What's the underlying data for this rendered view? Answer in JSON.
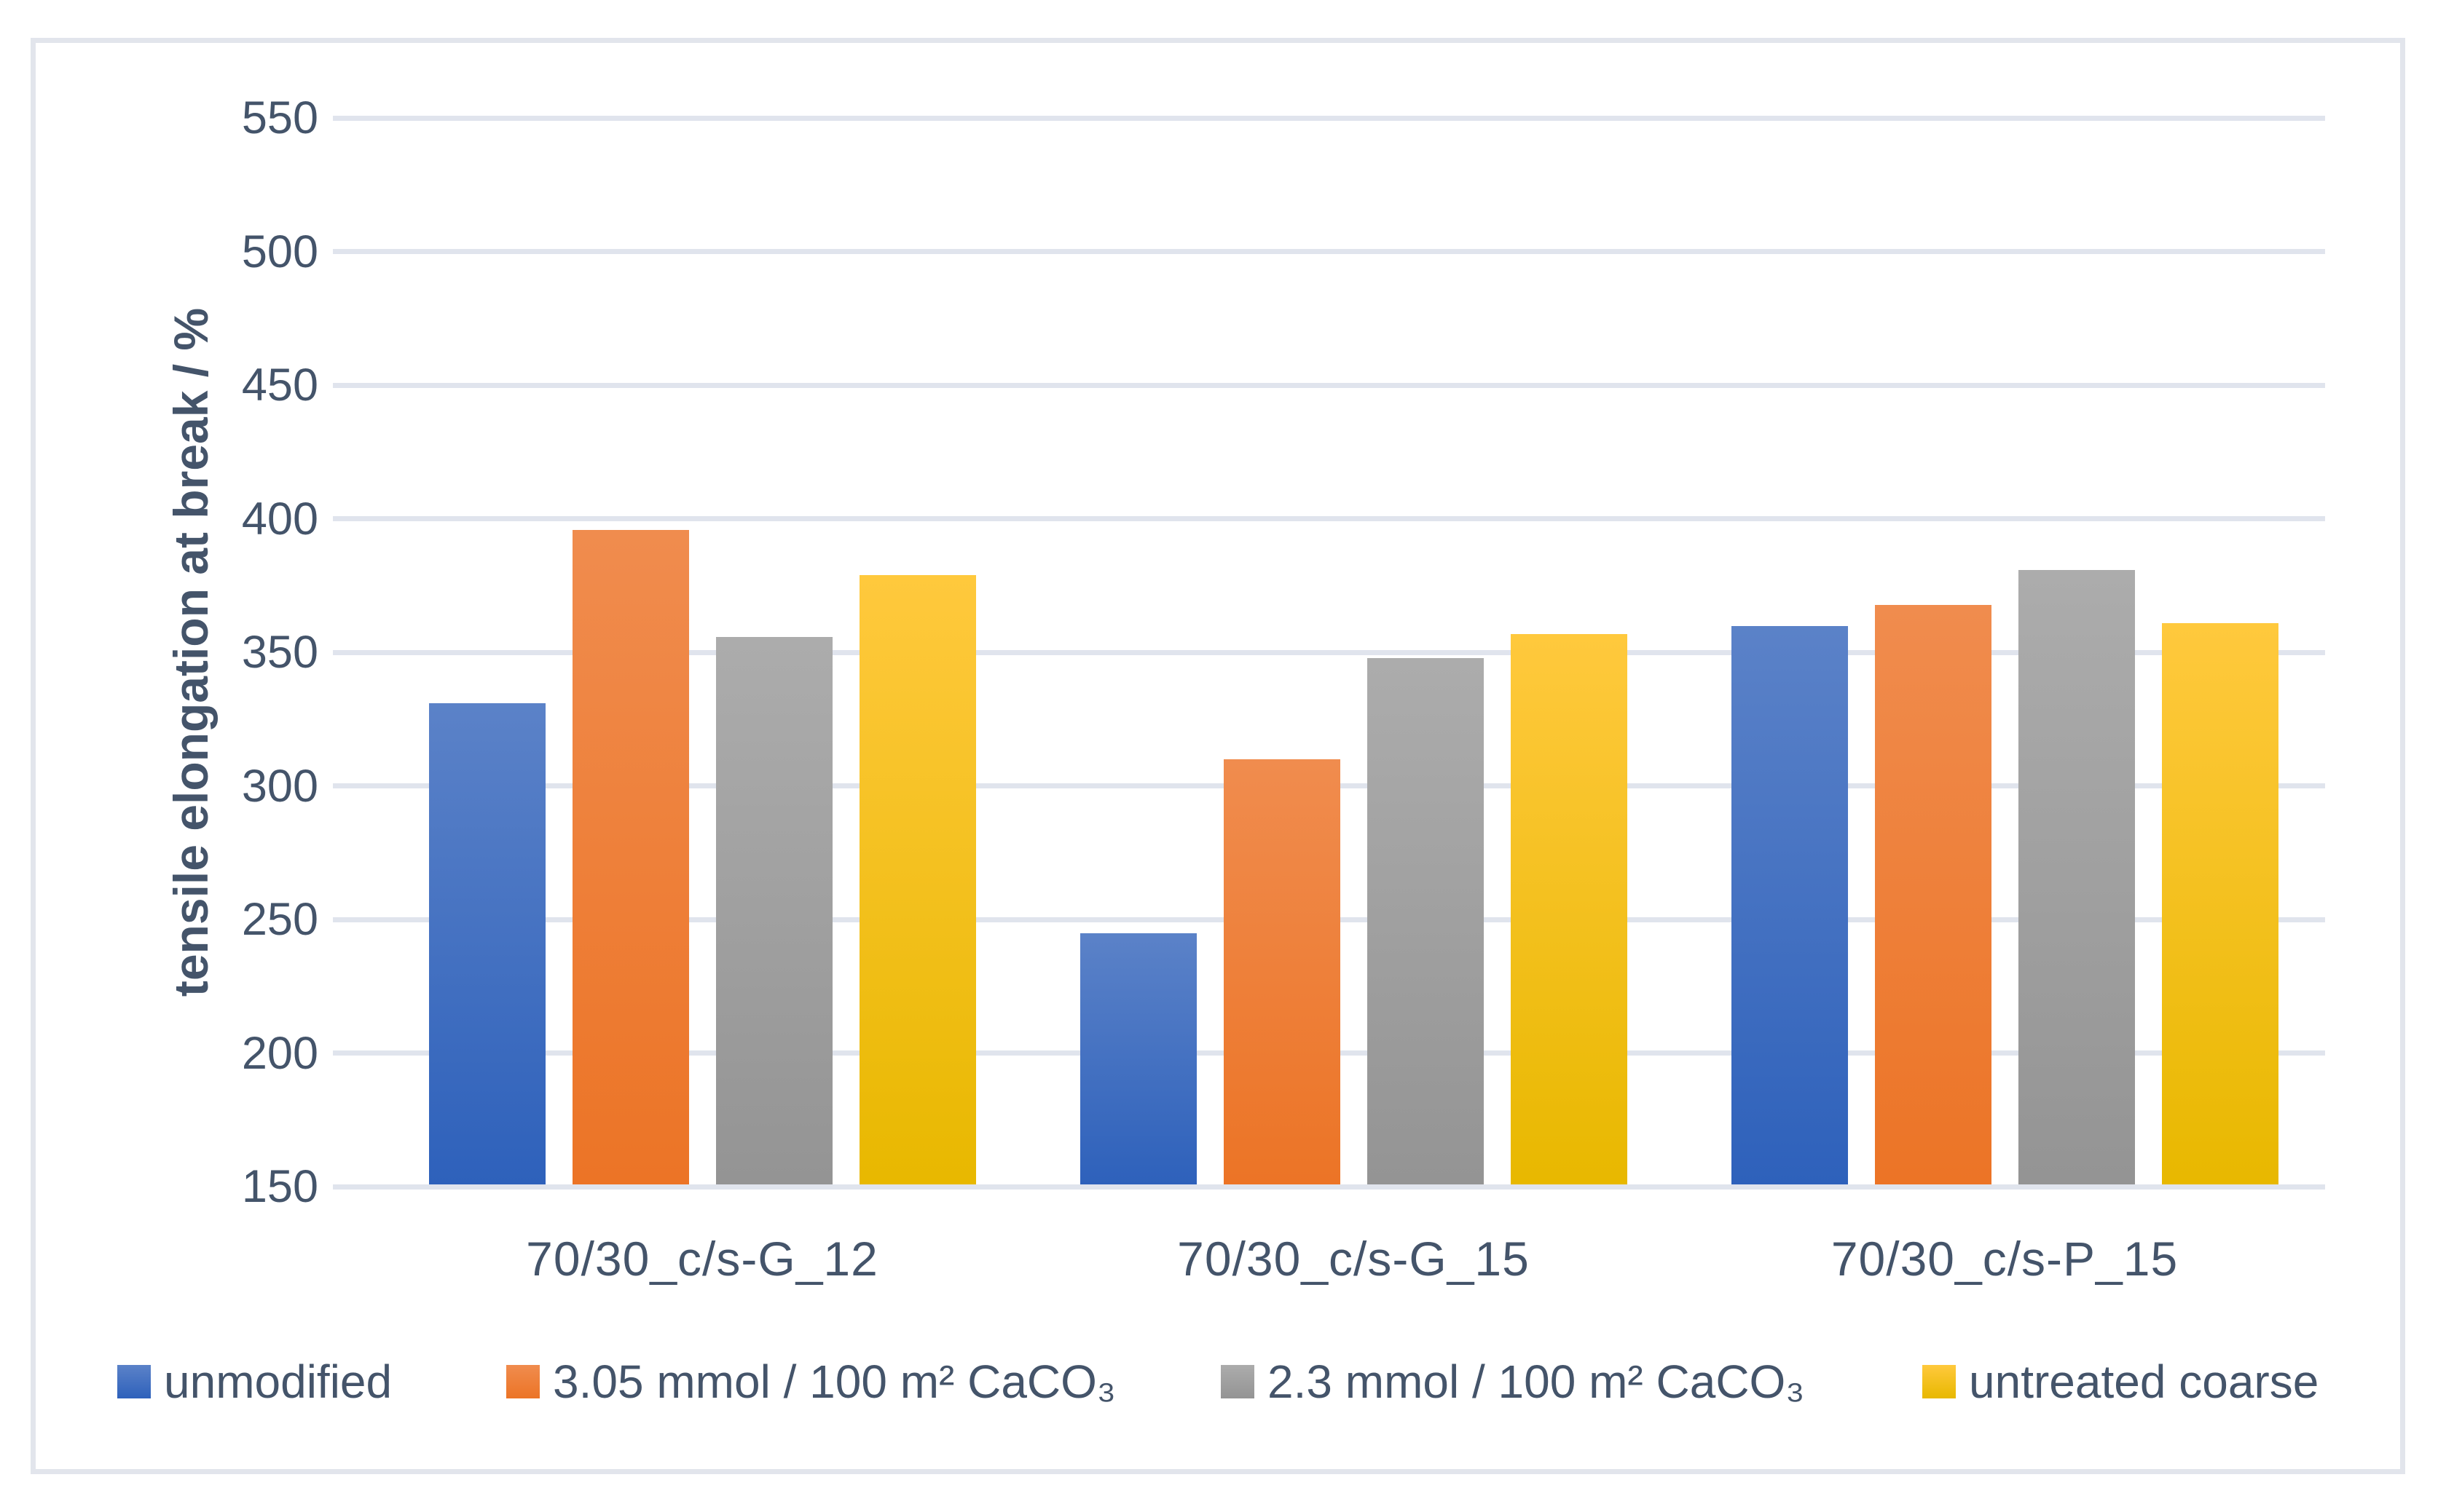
{
  "chart_data": {
    "type": "bar",
    "title": "",
    "categories": [
      "70/30_c/s-G_12",
      "70/30_c/s-G_15",
      "70/30_c/s-P_15"
    ],
    "series": [
      {
        "name": "unmodified",
        "values": [
          330,
          244,
          359
        ],
        "color_top": "#5B82C8",
        "color_bottom": "#2E61BB"
      },
      {
        "name": "3.05 mmol / 100 m² CaCO₃",
        "values": [
          395,
          309,
          367
        ],
        "color_top": "#F08C4E",
        "color_bottom": "#EC7426"
      },
      {
        "name": "2.3 mmol / 100 m² CaCO₃",
        "values": [
          355,
          347,
          380
        ],
        "color_top": "#ACACAC",
        "color_bottom": "#949494"
      },
      {
        "name": "untreated coarse",
        "values": [
          378,
          356,
          360
        ],
        "color_top": "#FFC93D",
        "color_bottom": "#E8B800"
      }
    ],
    "xlabel": "",
    "ylabel": "tensile elongation at break / %",
    "ylim": [
      150,
      550
    ],
    "ytick_step": 50,
    "ytick_labels": [
      "550",
      "500",
      "450",
      "400",
      "350",
      "300",
      "250",
      "200",
      "150"
    ],
    "grid": true,
    "legend_position": "bottom",
    "colors": {
      "gridline": "#E0E4ED",
      "frame_border": "#E2E5EC",
      "text": "#44546A",
      "background": "#FFFFFF"
    }
  }
}
